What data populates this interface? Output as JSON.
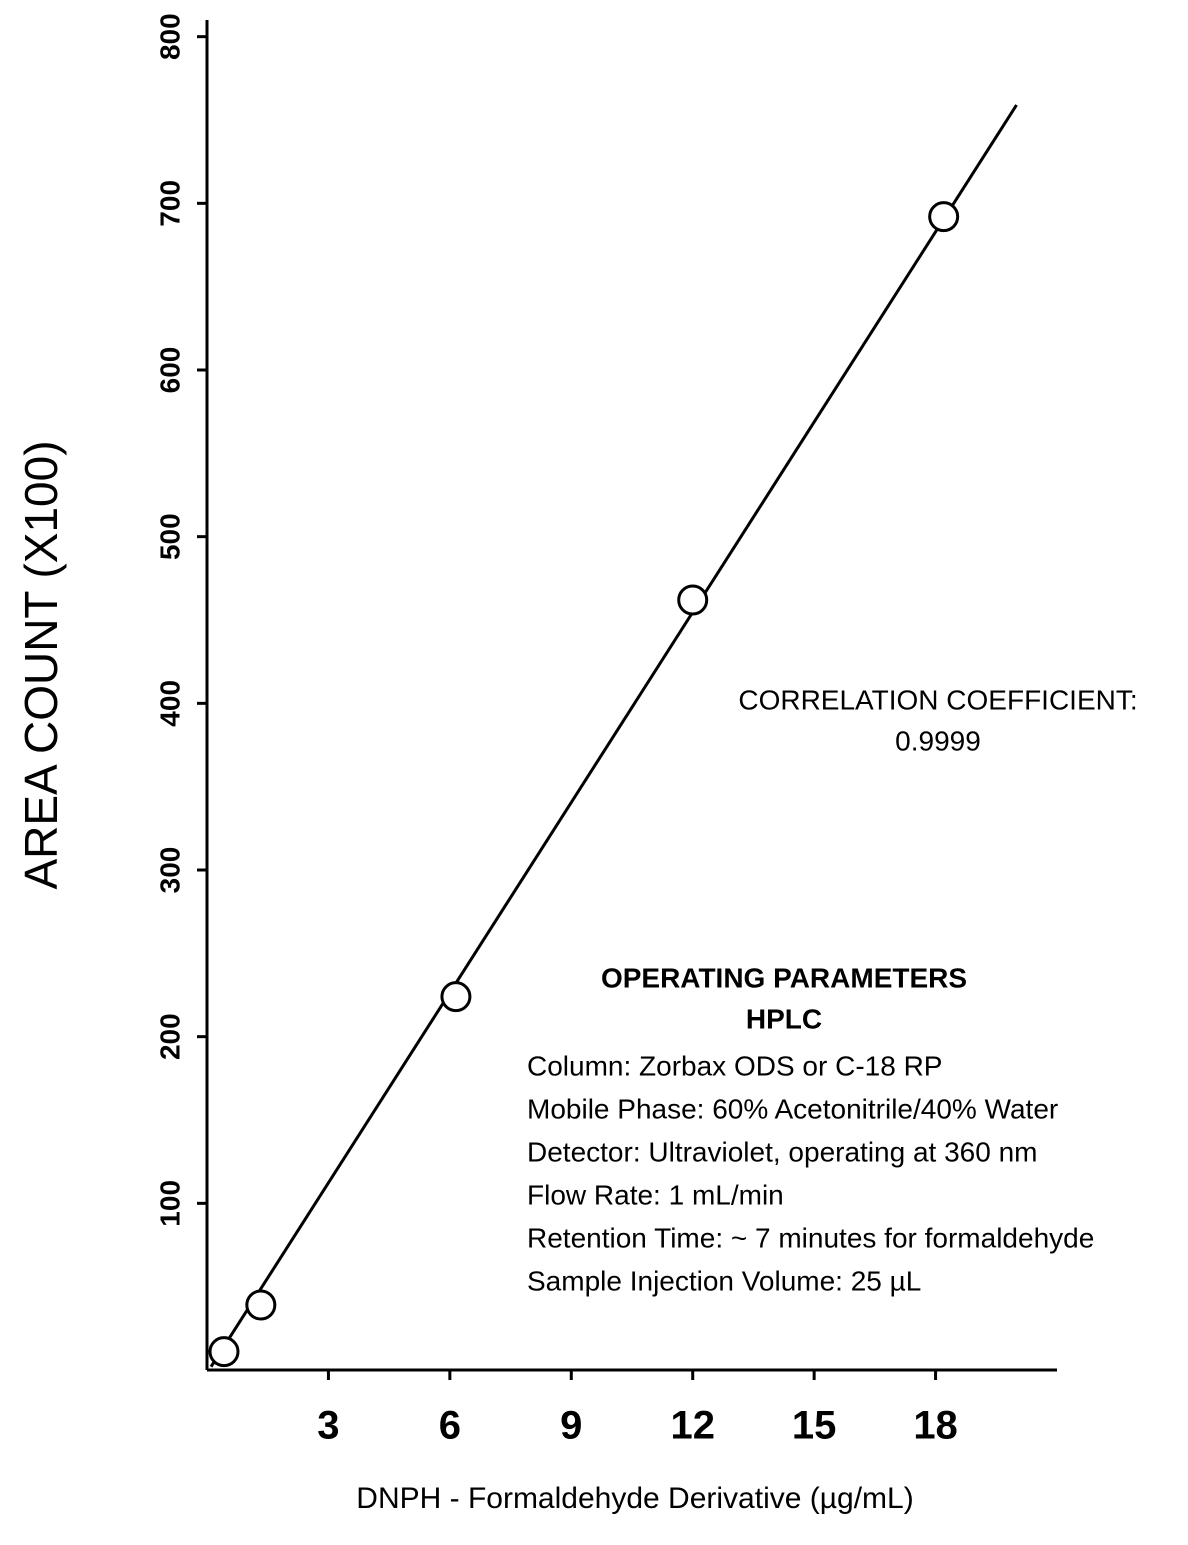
{
  "chart_data": {
    "type": "scatter",
    "xlabel": "DNPH - Formaldehyde Derivative (µg/mL)",
    "ylabel": "AREA COUNT (X100)",
    "x": [
      0.42,
      1.33,
      6.15,
      12.0,
      18.2
    ],
    "y": [
      11,
      39,
      224,
      462,
      692
    ],
    "fit_line": {
      "x": [
        0.1,
        20.0
      ],
      "y": [
        2,
        759
      ]
    },
    "xlim": [
      0,
      21
    ],
    "ylim": [
      0,
      810
    ],
    "xticks": [
      3,
      6,
      9,
      12,
      15,
      18
    ],
    "yticks": [
      100,
      200,
      300,
      400,
      500,
      600,
      700,
      800
    ],
    "grid": false,
    "color": "#000000",
    "annotations": [
      "CORRELATION COEFFICIENT:",
      "0.9999"
    ],
    "parameters": {
      "title": "OPERATING PARAMETERS",
      "subtitle": "HPLC",
      "lines": [
        "Column: Zorbax ODS or C-18 RP",
        "Mobile Phase: 60% Acetonitrile/40% Water",
        "Detector: Ultraviolet, operating at 360 nm",
        "Flow Rate: 1 mL/min",
        "Retention Time: ~ 7 minutes for formaldehyde",
        "Sample Injection Volume: 25 µL"
      ]
    }
  }
}
